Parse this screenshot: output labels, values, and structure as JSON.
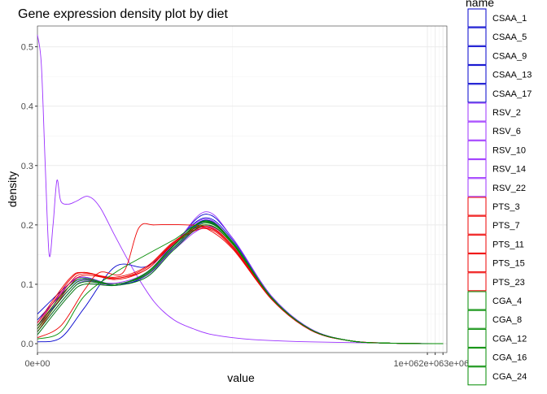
{
  "chart_data": {
    "type": "line",
    "title": "Gene expression density plot by diet",
    "xlabel": "value",
    "ylabel": "density",
    "xlim": [
      0,
      1.05
    ],
    "ylim": [
      -0.015,
      0.535
    ],
    "x_ticks": [
      {
        "value": 0,
        "label": "0e+00"
      },
      {
        "value": 1.0,
        "label": "1e+06"
      },
      {
        "value": 1.02,
        "label": "2e+06"
      },
      {
        "value": 1.04,
        "label": "3e+06"
      }
    ],
    "x_ticks_label_text": "1e+062e+063e+06",
    "y_ticks": [
      0.0,
      0.1,
      0.2,
      0.3,
      0.4,
      0.5
    ],
    "y_tick_labels": [
      "0.0",
      "0.1",
      "0.2",
      "0.3",
      "0.4",
      "0.5"
    ],
    "grid": true,
    "legend": {
      "title": "name",
      "position": "right"
    },
    "colors": {
      "CSAA": "#0000cd",
      "RSV": "#9b30ff",
      "PTS": "#ee0000",
      "CGA": "#008b00"
    },
    "series": [
      {
        "name": "CSAA_1",
        "group": "CSAA",
        "points": [
          [
            0,
            0.05
          ],
          [
            0.08,
            0.1
          ],
          [
            0.12,
            0.112
          ],
          [
            0.2,
            0.1
          ],
          [
            0.28,
            0.12
          ],
          [
            0.35,
            0.168
          ],
          [
            0.43,
            0.212
          ],
          [
            0.5,
            0.175
          ],
          [
            0.6,
            0.08
          ],
          [
            0.7,
            0.025
          ],
          [
            0.8,
            0.005
          ],
          [
            0.9,
            0.001
          ],
          [
            1.04,
            0.0
          ]
        ]
      },
      {
        "name": "CSAA_5",
        "group": "CSAA",
        "points": [
          [
            0,
            0.04
          ],
          [
            0.08,
            0.095
          ],
          [
            0.12,
            0.11
          ],
          [
            0.2,
            0.1
          ],
          [
            0.28,
            0.118
          ],
          [
            0.35,
            0.165
          ],
          [
            0.43,
            0.208
          ],
          [
            0.5,
            0.172
          ],
          [
            0.6,
            0.078
          ],
          [
            0.7,
            0.024
          ],
          [
            0.8,
            0.005
          ],
          [
            0.9,
            0.001
          ],
          [
            1.04,
            0.0
          ]
        ]
      },
      {
        "name": "CSAA_9",
        "group": "CSAA",
        "points": [
          [
            0,
            0.03
          ],
          [
            0.08,
            0.09
          ],
          [
            0.12,
            0.108
          ],
          [
            0.2,
            0.098
          ],
          [
            0.28,
            0.115
          ],
          [
            0.35,
            0.162
          ],
          [
            0.43,
            0.205
          ],
          [
            0.5,
            0.17
          ],
          [
            0.6,
            0.077
          ],
          [
            0.7,
            0.024
          ],
          [
            0.8,
            0.005
          ],
          [
            0.9,
            0.001
          ],
          [
            1.04,
            0.0
          ]
        ]
      },
      {
        "name": "CSAA_13",
        "group": "CSAA",
        "points": [
          [
            0,
            0.003
          ],
          [
            0.06,
            0.01
          ],
          [
            0.12,
            0.06
          ],
          [
            0.2,
            0.13
          ],
          [
            0.28,
            0.13
          ],
          [
            0.35,
            0.168
          ],
          [
            0.43,
            0.218
          ],
          [
            0.5,
            0.178
          ],
          [
            0.6,
            0.08
          ],
          [
            0.7,
            0.025
          ],
          [
            0.8,
            0.005
          ],
          [
            0.9,
            0.001
          ],
          [
            1.04,
            0.0
          ]
        ]
      },
      {
        "name": "CSAA_17",
        "group": "CSAA",
        "points": [
          [
            0,
            0.02
          ],
          [
            0.08,
            0.085
          ],
          [
            0.12,
            0.105
          ],
          [
            0.2,
            0.1
          ],
          [
            0.28,
            0.112
          ],
          [
            0.35,
            0.16
          ],
          [
            0.43,
            0.2
          ],
          [
            0.5,
            0.168
          ],
          [
            0.6,
            0.076
          ],
          [
            0.7,
            0.023
          ],
          [
            0.8,
            0.005
          ],
          [
            0.9,
            0.001
          ],
          [
            1.04,
            0.0
          ]
        ]
      },
      {
        "name": "RSV_2",
        "group": "RSV",
        "points": [
          [
            0,
            0.52
          ],
          [
            0.01,
            0.47
          ],
          [
            0.02,
            0.3
          ],
          [
            0.03,
            0.15
          ],
          [
            0.04,
            0.2
          ],
          [
            0.05,
            0.275
          ],
          [
            0.06,
            0.24
          ],
          [
            0.08,
            0.235
          ],
          [
            0.1,
            0.24
          ],
          [
            0.13,
            0.248
          ],
          [
            0.16,
            0.23
          ],
          [
            0.2,
            0.18
          ],
          [
            0.25,
            0.12
          ],
          [
            0.3,
            0.07
          ],
          [
            0.35,
            0.04
          ],
          [
            0.4,
            0.025
          ],
          [
            0.45,
            0.015
          ],
          [
            0.55,
            0.007
          ],
          [
            0.7,
            0.003
          ],
          [
            0.9,
            0.001
          ],
          [
            1.04,
            0.0
          ]
        ]
      },
      {
        "name": "RSV_6",
        "group": "RSV",
        "points": [
          [
            0,
            0.035
          ],
          [
            0.08,
            0.1
          ],
          [
            0.12,
            0.112
          ],
          [
            0.2,
            0.1
          ],
          [
            0.28,
            0.118
          ],
          [
            0.35,
            0.165
          ],
          [
            0.43,
            0.222
          ],
          [
            0.5,
            0.178
          ],
          [
            0.6,
            0.08
          ],
          [
            0.7,
            0.025
          ],
          [
            0.8,
            0.005
          ],
          [
            0.9,
            0.001
          ],
          [
            1.04,
            0.0
          ]
        ]
      },
      {
        "name": "RSV_10",
        "group": "RSV",
        "points": [
          [
            0,
            0.025
          ],
          [
            0.08,
            0.09
          ],
          [
            0.12,
            0.108
          ],
          [
            0.2,
            0.1
          ],
          [
            0.28,
            0.116
          ],
          [
            0.35,
            0.16
          ],
          [
            0.43,
            0.198
          ],
          [
            0.5,
            0.168
          ],
          [
            0.6,
            0.077
          ],
          [
            0.7,
            0.024
          ],
          [
            0.8,
            0.005
          ],
          [
            0.9,
            0.001
          ],
          [
            1.04,
            0.0
          ]
        ]
      },
      {
        "name": "RSV_14",
        "group": "RSV",
        "points": [
          [
            0,
            0.02
          ],
          [
            0.08,
            0.085
          ],
          [
            0.12,
            0.105
          ],
          [
            0.2,
            0.102
          ],
          [
            0.28,
            0.12
          ],
          [
            0.35,
            0.168
          ],
          [
            0.43,
            0.21
          ],
          [
            0.5,
            0.172
          ],
          [
            0.6,
            0.078
          ],
          [
            0.7,
            0.024
          ],
          [
            0.8,
            0.005
          ],
          [
            0.9,
            0.001
          ],
          [
            1.04,
            0.0
          ]
        ]
      },
      {
        "name": "RSV_22",
        "group": "RSV",
        "points": [
          [
            0,
            0.015
          ],
          [
            0.08,
            0.08
          ],
          [
            0.12,
            0.1
          ],
          [
            0.2,
            0.1
          ],
          [
            0.28,
            0.115
          ],
          [
            0.35,
            0.158
          ],
          [
            0.43,
            0.195
          ],
          [
            0.5,
            0.165
          ],
          [
            0.6,
            0.076
          ],
          [
            0.7,
            0.023
          ],
          [
            0.8,
            0.005
          ],
          [
            0.9,
            0.001
          ],
          [
            1.04,
            0.0
          ]
        ]
      },
      {
        "name": "PTS_3",
        "group": "PTS",
        "points": [
          [
            0,
            0.01
          ],
          [
            0.06,
            0.03
          ],
          [
            0.12,
            0.09
          ],
          [
            0.16,
            0.12
          ],
          [
            0.22,
            0.12
          ],
          [
            0.26,
            0.195
          ],
          [
            0.3,
            0.2
          ],
          [
            0.38,
            0.2
          ],
          [
            0.43,
            0.195
          ],
          [
            0.5,
            0.16
          ],
          [
            0.6,
            0.075
          ],
          [
            0.7,
            0.023
          ],
          [
            0.8,
            0.005
          ],
          [
            0.9,
            0.001
          ],
          [
            1.04,
            0.0
          ]
        ]
      },
      {
        "name": "PTS_7",
        "group": "PTS",
        "points": [
          [
            0,
            0.02
          ],
          [
            0.08,
            0.095
          ],
          [
            0.12,
            0.115
          ],
          [
            0.2,
            0.11
          ],
          [
            0.28,
            0.125
          ],
          [
            0.35,
            0.17
          ],
          [
            0.43,
            0.2
          ],
          [
            0.5,
            0.168
          ],
          [
            0.6,
            0.077
          ],
          [
            0.7,
            0.024
          ],
          [
            0.8,
            0.005
          ],
          [
            0.9,
            0.001
          ],
          [
            1.04,
            0.0
          ]
        ]
      },
      {
        "name": "PTS_11",
        "group": "PTS",
        "points": [
          [
            0,
            0.025
          ],
          [
            0.08,
            0.1
          ],
          [
            0.12,
            0.118
          ],
          [
            0.2,
            0.112
          ],
          [
            0.28,
            0.13
          ],
          [
            0.35,
            0.172
          ],
          [
            0.43,
            0.198
          ],
          [
            0.5,
            0.165
          ],
          [
            0.6,
            0.076
          ],
          [
            0.7,
            0.023
          ],
          [
            0.8,
            0.005
          ],
          [
            0.9,
            0.001
          ],
          [
            1.04,
            0.0
          ]
        ]
      },
      {
        "name": "PTS_15",
        "group": "PTS",
        "points": [
          [
            0,
            0.03
          ],
          [
            0.08,
            0.105
          ],
          [
            0.12,
            0.12
          ],
          [
            0.2,
            0.11
          ],
          [
            0.28,
            0.128
          ],
          [
            0.35,
            0.17
          ],
          [
            0.43,
            0.196
          ],
          [
            0.5,
            0.164
          ],
          [
            0.6,
            0.075
          ],
          [
            0.7,
            0.023
          ],
          [
            0.8,
            0.005
          ],
          [
            0.9,
            0.001
          ],
          [
            1.04,
            0.0
          ]
        ]
      },
      {
        "name": "PTS_23",
        "group": "PTS",
        "points": [
          [
            0,
            0.035
          ],
          [
            0.08,
            0.108
          ],
          [
            0.12,
            0.12
          ],
          [
            0.2,
            0.108
          ],
          [
            0.28,
            0.125
          ],
          [
            0.35,
            0.168
          ],
          [
            0.43,
            0.194
          ],
          [
            0.5,
            0.162
          ],
          [
            0.6,
            0.075
          ],
          [
            0.7,
            0.023
          ],
          [
            0.8,
            0.005
          ],
          [
            0.9,
            0.001
          ],
          [
            1.04,
            0.0
          ]
        ]
      },
      {
        "name": "CGA_4",
        "group": "CGA",
        "points": [
          [
            0,
            0.008
          ],
          [
            0.06,
            0.02
          ],
          [
            0.12,
            0.08
          ],
          [
            0.2,
            0.12
          ],
          [
            0.28,
            0.15
          ],
          [
            0.35,
            0.175
          ],
          [
            0.43,
            0.205
          ],
          [
            0.5,
            0.17
          ],
          [
            0.6,
            0.078
          ],
          [
            0.7,
            0.024
          ],
          [
            0.8,
            0.005
          ],
          [
            0.9,
            0.001
          ],
          [
            1.04,
            0.0
          ]
        ]
      },
      {
        "name": "CGA_8",
        "group": "CGA",
        "points": [
          [
            0,
            0.015
          ],
          [
            0.08,
            0.08
          ],
          [
            0.12,
            0.1
          ],
          [
            0.2,
            0.098
          ],
          [
            0.28,
            0.112
          ],
          [
            0.35,
            0.158
          ],
          [
            0.43,
            0.2
          ],
          [
            0.5,
            0.168
          ],
          [
            0.6,
            0.077
          ],
          [
            0.7,
            0.024
          ],
          [
            0.8,
            0.005
          ],
          [
            0.9,
            0.001
          ],
          [
            1.04,
            0.0
          ]
        ]
      },
      {
        "name": "CGA_12",
        "group": "CGA",
        "points": [
          [
            0,
            0.02
          ],
          [
            0.08,
            0.085
          ],
          [
            0.12,
            0.104
          ],
          [
            0.2,
            0.1
          ],
          [
            0.28,
            0.116
          ],
          [
            0.35,
            0.162
          ],
          [
            0.43,
            0.203
          ],
          [
            0.5,
            0.17
          ],
          [
            0.6,
            0.077
          ],
          [
            0.7,
            0.024
          ],
          [
            0.8,
            0.005
          ],
          [
            0.9,
            0.001
          ],
          [
            1.04,
            0.0
          ]
        ]
      },
      {
        "name": "CGA_16",
        "group": "CGA",
        "points": [
          [
            0,
            0.025
          ],
          [
            0.08,
            0.09
          ],
          [
            0.12,
            0.107
          ],
          [
            0.2,
            0.1
          ],
          [
            0.28,
            0.118
          ],
          [
            0.35,
            0.165
          ],
          [
            0.43,
            0.206
          ],
          [
            0.5,
            0.171
          ],
          [
            0.6,
            0.078
          ],
          [
            0.7,
            0.024
          ],
          [
            0.8,
            0.005
          ],
          [
            0.9,
            0.001
          ],
          [
            1.04,
            0.0
          ]
        ]
      },
      {
        "name": "CGA_24",
        "group": "CGA",
        "points": [
          [
            0,
            0.03
          ],
          [
            0.08,
            0.095
          ],
          [
            0.12,
            0.11
          ],
          [
            0.2,
            0.1
          ],
          [
            0.28,
            0.12
          ],
          [
            0.35,
            0.166
          ],
          [
            0.43,
            0.207
          ],
          [
            0.5,
            0.172
          ],
          [
            0.6,
            0.078
          ],
          [
            0.7,
            0.024
          ],
          [
            0.8,
            0.005
          ],
          [
            0.9,
            0.001
          ],
          [
            1.04,
            0.0
          ]
        ]
      }
    ]
  }
}
